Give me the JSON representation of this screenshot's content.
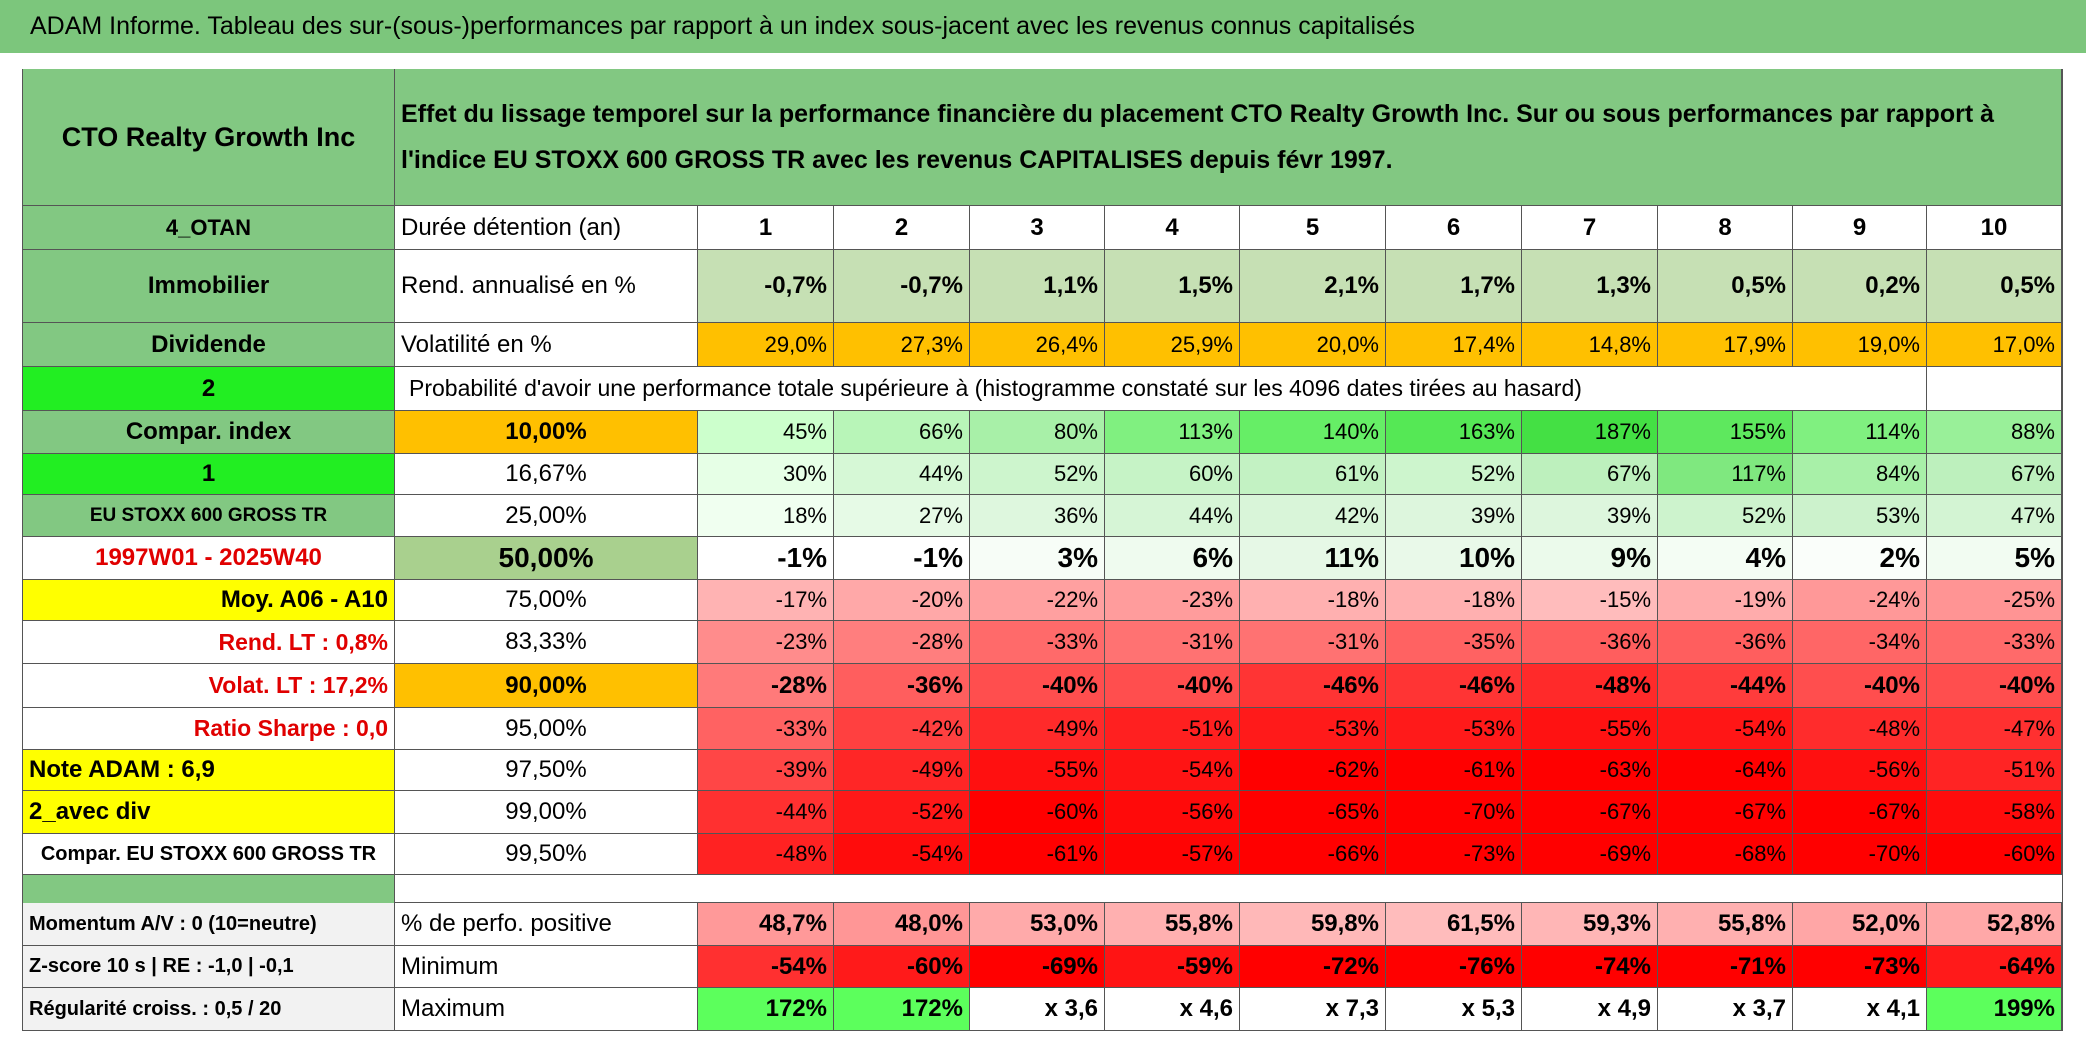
{
  "title": "ADAM Informe. Tableau des sur-(sous-)performances par rapport à un index sous-jacent avec les revenus connus capitalisés",
  "header": {
    "left": "CTO Realty Growth Inc",
    "text": "Effet du lissage temporel sur la performance financière du placement CTO Realty Growth Inc. Sur ou sous performances par rapport à l'indice EU STOXX 600 GROSS TR avec les revenus CAPITALISES depuis févr 1997."
  },
  "rows": [
    {
      "label": "4_OTAN",
      "name": "Durée détention (an)",
      "cells": [
        "1",
        "2",
        "3",
        "4",
        "5",
        "6",
        "7",
        "8",
        "9",
        "10"
      ],
      "fill": [
        "#ffffff",
        "#ffffff",
        "#ffffff",
        "#ffffff",
        "#ffffff",
        "#ffffff",
        "#ffffff",
        "#ffffff",
        "#ffffff",
        "#ffffff"
      ]
    },
    {
      "label": "Immobilier",
      "name": "Rend. annualisé en %",
      "cells": [
        "-0,7%",
        "-0,7%",
        "1,1%",
        "1,5%",
        "2,1%",
        "1,7%",
        "1,3%",
        "0,5%",
        "0,2%",
        "0,5%"
      ],
      "fill": [
        "#c6e0b4",
        "#c6e0b4",
        "#c6e0b4",
        "#c6e0b4",
        "#c6e0b4",
        "#c6e0b4",
        "#c6e0b4",
        "#c6e0b4",
        "#c6e0b4",
        "#c6e0b4"
      ]
    },
    {
      "label": "Dividende",
      "name": "Volatilité en %",
      "cells": [
        "29,0%",
        "27,3%",
        "26,4%",
        "25,9%",
        "20,0%",
        "17,4%",
        "14,8%",
        "17,9%",
        "19,0%",
        "17,0%"
      ],
      "fill": [
        "#ffc000",
        "#ffc000",
        "#ffc000",
        "#ffc000",
        "#ffc000",
        "#ffc000",
        "#ffc000",
        "#ffc000",
        "#ffc000",
        "#ffc000"
      ]
    },
    {
      "label": "2",
      "text": "Probabilité d'avoir une performance totale supérieure à (histogramme constaté sur les 4096 dates tirées au hasard)"
    },
    {
      "label": "Compar. index",
      "name": "10,00%",
      "cells": [
        "45%",
        "66%",
        "80%",
        "113%",
        "140%",
        "163%",
        "187%",
        "155%",
        "114%",
        "88%"
      ],
      "fill": [
        "#ccffcc",
        "#b8f5b8",
        "#a8f0a8",
        "#80f080",
        "#66ee66",
        "#55e855",
        "#44e044",
        "#5ee85e",
        "#80f080",
        "#99f099"
      ]
    },
    {
      "label": "1",
      "name": "16,67%",
      "cells": [
        "30%",
        "44%",
        "52%",
        "60%",
        "61%",
        "52%",
        "67%",
        "117%",
        "84%",
        "67%"
      ],
      "fill": [
        "#e6ffe6",
        "#d6f8d6",
        "#cdf5cd",
        "#c6f3c6",
        "#c3f2c3",
        "#cdf5cd",
        "#bdf0bd",
        "#7fe87f",
        "#a8f0a8",
        "#bdf0bd"
      ]
    },
    {
      "label": "EU STOXX 600 GROSS TR",
      "name": "25,00%",
      "cells": [
        "18%",
        "27%",
        "36%",
        "44%",
        "42%",
        "39%",
        "39%",
        "52%",
        "53%",
        "47%"
      ],
      "fill": [
        "#f0fff0",
        "#e6fae6",
        "#def7de",
        "#d6f5d6",
        "#d9f5d9",
        "#ddf6dd",
        "#ddf6dd",
        "#cdf3cd",
        "#ccf2cc",
        "#d3f4d3"
      ]
    },
    {
      "label": "1997W01 - 2025W40",
      "name": "50,00%",
      "cells": [
        "-1%",
        "-1%",
        "3%",
        "6%",
        "11%",
        "10%",
        "9%",
        "4%",
        "2%",
        "5%"
      ],
      "fill": [
        "#ffffff",
        "#ffffff",
        "#f7fdf7",
        "#effbef",
        "#e6f8e6",
        "#e9f9e9",
        "#ebfaeb",
        "#f4fdf4",
        "#fafefa",
        "#f2fcf2"
      ]
    },
    {
      "label": "Moy. A06 - A10",
      "name": "75,00%",
      "cells": [
        "-17%",
        "-20%",
        "-22%",
        "-23%",
        "-18%",
        "-18%",
        "-15%",
        "-19%",
        "-24%",
        "-25%"
      ],
      "fill": [
        "#ffb3b3",
        "#ffa8a8",
        "#ffa0a0",
        "#ff9c9c",
        "#ffb0b0",
        "#ffb0b0",
        "#ffbcbc",
        "#ffacac",
        "#ff9898",
        "#ff9494"
      ]
    },
    {
      "label": "Rend. LT :   0,8%",
      "name": "83,33%",
      "cells": [
        "-23%",
        "-28%",
        "-33%",
        "-31%",
        "-31%",
        "-35%",
        "-36%",
        "-36%",
        "-34%",
        "-33%"
      ],
      "fill": [
        "#ff8c8c",
        "#ff7e7e",
        "#ff6a6a",
        "#ff7272",
        "#ff7272",
        "#ff6262",
        "#ff5e5e",
        "#ff5e5e",
        "#ff6666",
        "#ff6a6a"
      ]
    },
    {
      "label": "Volat. LT :   17,2%",
      "name": "90,00%",
      "cells": [
        "-28%",
        "-36%",
        "-40%",
        "-40%",
        "-46%",
        "-46%",
        "-48%",
        "-44%",
        "-40%",
        "-40%"
      ],
      "fill": [
        "#ff7a7a",
        "#ff5e5e",
        "#ff4e4e",
        "#ff4e4e",
        "#ff3434",
        "#ff3434",
        "#ff2a2a",
        "#ff3c3c",
        "#ff4e4e",
        "#ff4e4e"
      ]
    },
    {
      "label": "Ratio Sharpe :    0,0",
      "name": "95,00%",
      "cells": [
        "-33%",
        "-42%",
        "-49%",
        "-51%",
        "-53%",
        "-53%",
        "-55%",
        "-54%",
        "-48%",
        "-47%"
      ],
      "fill": [
        "#ff6262",
        "#ff4040",
        "#ff2a2a",
        "#ff2020",
        "#ff1a1a",
        "#ff1a1a",
        "#ff1212",
        "#ff1616",
        "#ff2c2c",
        "#ff3030"
      ]
    },
    {
      "label": "Note ADAM : 6,9",
      "name": "97,50%",
      "cells": [
        "-39%",
        "-49%",
        "-55%",
        "-54%",
        "-62%",
        "-61%",
        "-63%",
        "-64%",
        "-56%",
        "-51%"
      ],
      "fill": [
        "#ff4646",
        "#ff2626",
        "#ff1010",
        "#ff1414",
        "#ff0000",
        "#ff0000",
        "#ff0000",
        "#ff0000",
        "#ff1010",
        "#ff2424"
      ]
    },
    {
      "label": "2_avec div",
      "name": "99,00%",
      "cells": [
        "-44%",
        "-52%",
        "-60%",
        "-56%",
        "-65%",
        "-70%",
        "-67%",
        "-67%",
        "-67%",
        "-58%"
      ],
      "fill": [
        "#ff3030",
        "#ff1818",
        "#ff0000",
        "#ff0a0a",
        "#ff0000",
        "#ff0000",
        "#ff0000",
        "#ff0000",
        "#ff0000",
        "#ff0c0c"
      ]
    },
    {
      "label": "Compar. EU STOXX 600 GROSS TR",
      "name": "99,50%",
      "cells": [
        "-48%",
        "-54%",
        "-61%",
        "-57%",
        "-66%",
        "-73%",
        "-69%",
        "-68%",
        "-70%",
        "-60%"
      ],
      "fill": [
        "#ff2222",
        "#ff0c0c",
        "#ff0000",
        "#ff0404",
        "#ff0000",
        "#ff0000",
        "#ff0000",
        "#ff0000",
        "#ff0000",
        "#ff0000"
      ]
    },
    {
      "label": "Momentum A/V : 0 (10=neutre)",
      "name": "% de perfo. positive",
      "cells": [
        "48,7%",
        "48,0%",
        "53,0%",
        "55,8%",
        "59,8%",
        "61,5%",
        "59,3%",
        "55,8%",
        "52,0%",
        "52,8%"
      ],
      "fill": [
        "#ff9999",
        "#ff9696",
        "#ffaaaa",
        "#ffb0b0",
        "#ffb8b8",
        "#ffbcbc",
        "#ffb6b6",
        "#ffb0b0",
        "#ffa6a6",
        "#ffa8a8"
      ]
    },
    {
      "label": "Z-score 10 s | RE : -1,0 | -0,1",
      "name": "Minimum",
      "cells": [
        "-54%",
        "-60%",
        "-69%",
        "-59%",
        "-72%",
        "-76%",
        "-74%",
        "-71%",
        "-73%",
        "-64%"
      ],
      "fill": [
        "#ff3030",
        "#ff1a1a",
        "#ff0000",
        "#ff1414",
        "#ff0000",
        "#ff0000",
        "#ff0000",
        "#ff0000",
        "#ff0000",
        "#ff1a1a"
      ]
    },
    {
      "label": "Régularité croiss. : 0,5 / 20",
      "name": "Maximum",
      "cells": [
        "172%",
        "172%",
        "x 3,6",
        "x 4,6",
        "x 7,3",
        "x 5,3",
        "x 4,9",
        "x 3,7",
        "x 4,1",
        "199%"
      ],
      "fill": [
        "#5cff5c",
        "#5cff5c",
        "#ffffff",
        "#ffffff",
        "#ffffff",
        "#ffffff",
        "#ffffff",
        "#ffffff",
        "#ffffff",
        "#5cff5c"
      ]
    }
  ]
}
